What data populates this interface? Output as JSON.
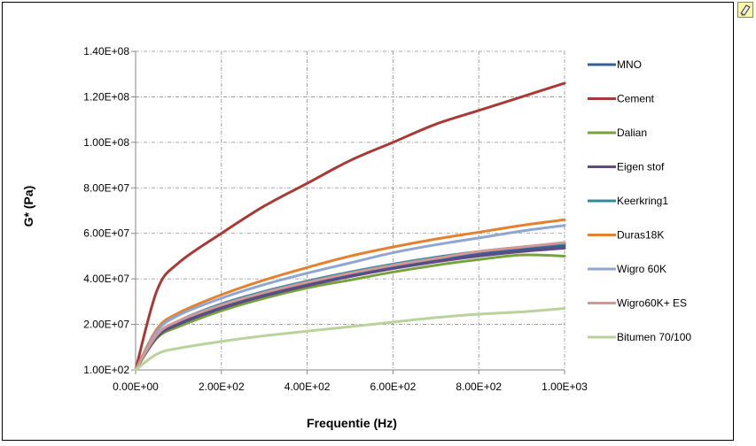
{
  "chart_data": {
    "type": "line",
    "title": "",
    "xlabel": "Frequentie (Hz)",
    "ylabel": "G* (Pa)",
    "xlim": [
      0,
      1000
    ],
    "ylim": [
      0,
      140000000
    ],
    "xticks": [
      0,
      200,
      400,
      600,
      800,
      1000
    ],
    "xtick_labels": [
      "0.00E+00",
      "2.00E+02",
      "4.00E+02",
      "6.00E+02",
      "8.00E+02",
      "1.00E+03"
    ],
    "yticks": [
      0,
      20000000,
      40000000,
      60000000,
      80000000,
      100000000,
      120000000,
      140000000
    ],
    "ytick_labels": [
      "1.00E+02",
      "2.00E+07",
      "4.00E+07",
      "6.00E+07",
      "8.00E+07",
      "1.00E+08",
      "1.20E+08",
      "1.40E+08"
    ],
    "grid": true,
    "legend_position": "right",
    "x": [
      0,
      50,
      100,
      200,
      300,
      400,
      500,
      600,
      700,
      800,
      900,
      1000
    ],
    "series": [
      {
        "name": "MNO",
        "color": "#376092",
        "values": [
          100,
          15000000,
          21000000,
          28000000,
          33500000,
          38000000,
          42000000,
          45500000,
          48500000,
          51000000,
          53000000,
          54500000
        ]
      },
      {
        "name": "Cement",
        "color": "#a83a36",
        "values": [
          100,
          35000000,
          47000000,
          60000000,
          72000000,
          82000000,
          92000000,
          100000000,
          108000000,
          114000000,
          120000000,
          126000000
        ]
      },
      {
        "name": "Dalian",
        "color": "#77a33d",
        "values": [
          100,
          14000000,
          19000000,
          26000000,
          31500000,
          36000000,
          39500000,
          43000000,
          46000000,
          48500000,
          50500000,
          50000000
        ]
      },
      {
        "name": "Eigen stof",
        "color": "#604a84",
        "values": [
          100,
          14500000,
          20000000,
          27000000,
          32500000,
          37000000,
          41000000,
          44500000,
          47500000,
          50000000,
          52000000,
          53500000
        ]
      },
      {
        "name": "Keerkring1",
        "color": "#31899e",
        "values": [
          100,
          15500000,
          21500000,
          29000000,
          34500000,
          39000000,
          43000000,
          46500000,
          49500000,
          52000000,
          54000000,
          55500000
        ]
      },
      {
        "name": "Duras18K",
        "color": "#e4812e",
        "values": [
          100,
          18000000,
          25000000,
          33000000,
          39500000,
          45000000,
          50000000,
          54000000,
          57500000,
          60500000,
          63500000,
          66000000
        ]
      },
      {
        "name": "Wigro 60K",
        "color": "#8ea6d1",
        "values": [
          100,
          17000000,
          24000000,
          31500000,
          37500000,
          42500000,
          47000000,
          51500000,
          55000000,
          58000000,
          61000000,
          63500000
        ]
      },
      {
        "name": "Wigro60K+ ES",
        "color": "#d39895",
        "values": [
          100,
          15500000,
          21500000,
          28500000,
          34000000,
          38500000,
          42500000,
          46000000,
          49000000,
          52000000,
          54000000,
          56000000
        ]
      },
      {
        "name": "Bitumen 70/100",
        "color": "#b9d39b",
        "values": [
          100,
          7000000,
          9500000,
          12500000,
          15000000,
          17000000,
          19000000,
          21000000,
          23000000,
          24500000,
          25500000,
          27000000
        ]
      }
    ]
  }
}
